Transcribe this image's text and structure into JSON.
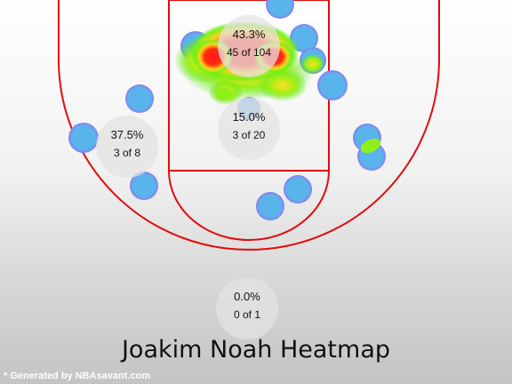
{
  "title": "Joakim Noah Heatmap",
  "credit": "* Generated by NBAsavant.com",
  "colors": {
    "court_line": "#e30b0b",
    "shot_dot": "#5ab4ec",
    "dot_glow": "#8a7cf0"
  },
  "chart_data": {
    "type": "heatmap",
    "title": "Joakim Noah Heatmap",
    "zones": [
      {
        "id": "restricted-area",
        "pct_label": "43.3%",
        "count_label": "45 of 104",
        "made": 45,
        "attempts": 104
      },
      {
        "id": "paint",
        "pct_label": "15.0%",
        "count_label": "3 of 20",
        "made": 3,
        "attempts": 20
      },
      {
        "id": "left-midrange",
        "pct_label": "37.5%",
        "count_label": "3 of 8",
        "made": 3,
        "attempts": 8
      },
      {
        "id": "backcourt",
        "pct_label": "0.0%",
        "count_label": "0 of 1",
        "made": 0,
        "attempts": 1
      }
    ]
  }
}
